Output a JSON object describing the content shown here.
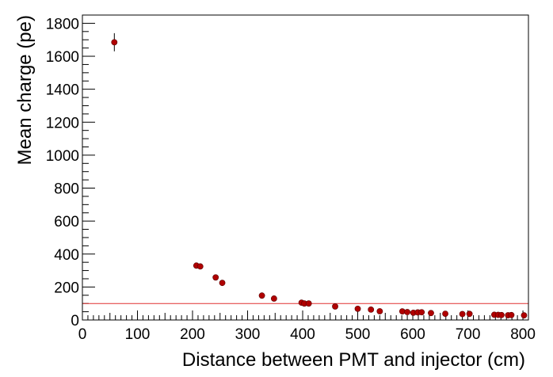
{
  "chart_data": {
    "type": "scatter",
    "xlabel": "Distance between PMT and injector (cm)",
    "ylabel": "Mean charge (pe)",
    "xlim": [
      0,
      810
    ],
    "ylim": [
      0,
      1850
    ],
    "x_ticks": [
      0,
      100,
      200,
      300,
      400,
      500,
      600,
      700,
      800
    ],
    "y_ticks": [
      0,
      200,
      400,
      600,
      800,
      1000,
      1200,
      1400,
      1600,
      1800
    ],
    "grid": false,
    "reference_line": {
      "y": 100,
      "color": "#e03030"
    },
    "marker_color": "#b00000",
    "series": [
      {
        "points": [
          {
            "x": 58,
            "y": 1685,
            "err": 55
          },
          {
            "x": 207,
            "y": 330,
            "err": 18
          },
          {
            "x": 214,
            "y": 325,
            "err": 18
          },
          {
            "x": 242,
            "y": 258,
            "err": 12
          },
          {
            "x": 254,
            "y": 225,
            "err": 10
          },
          {
            "x": 326,
            "y": 148,
            "err": 8
          },
          {
            "x": 348,
            "y": 130,
            "err": 7
          },
          {
            "x": 398,
            "y": 105,
            "err": 6
          },
          {
            "x": 403,
            "y": 100,
            "err": 6
          },
          {
            "x": 411,
            "y": 100,
            "err": 6
          },
          {
            "x": 459,
            "y": 82,
            "err": 5
          },
          {
            "x": 500,
            "y": 68,
            "err": 4
          },
          {
            "x": 524,
            "y": 63,
            "err": 4
          },
          {
            "x": 540,
            "y": 53,
            "err": 4
          },
          {
            "x": 581,
            "y": 52,
            "err": 3
          },
          {
            "x": 590,
            "y": 48,
            "err": 3
          },
          {
            "x": 601,
            "y": 44,
            "err": 3
          },
          {
            "x": 609,
            "y": 46,
            "err": 3
          },
          {
            "x": 616,
            "y": 47,
            "err": 3
          },
          {
            "x": 633,
            "y": 42,
            "err": 3
          },
          {
            "x": 659,
            "y": 38,
            "err": 3
          },
          {
            "x": 690,
            "y": 36,
            "err": 3
          },
          {
            "x": 703,
            "y": 37,
            "err": 3
          },
          {
            "x": 748,
            "y": 32,
            "err": 3
          },
          {
            "x": 755,
            "y": 31,
            "err": 3
          },
          {
            "x": 761,
            "y": 30,
            "err": 3
          },
          {
            "x": 773,
            "y": 29,
            "err": 3
          },
          {
            "x": 779,
            "y": 30,
            "err": 3
          },
          {
            "x": 802,
            "y": 28,
            "err": 3
          }
        ]
      }
    ]
  }
}
